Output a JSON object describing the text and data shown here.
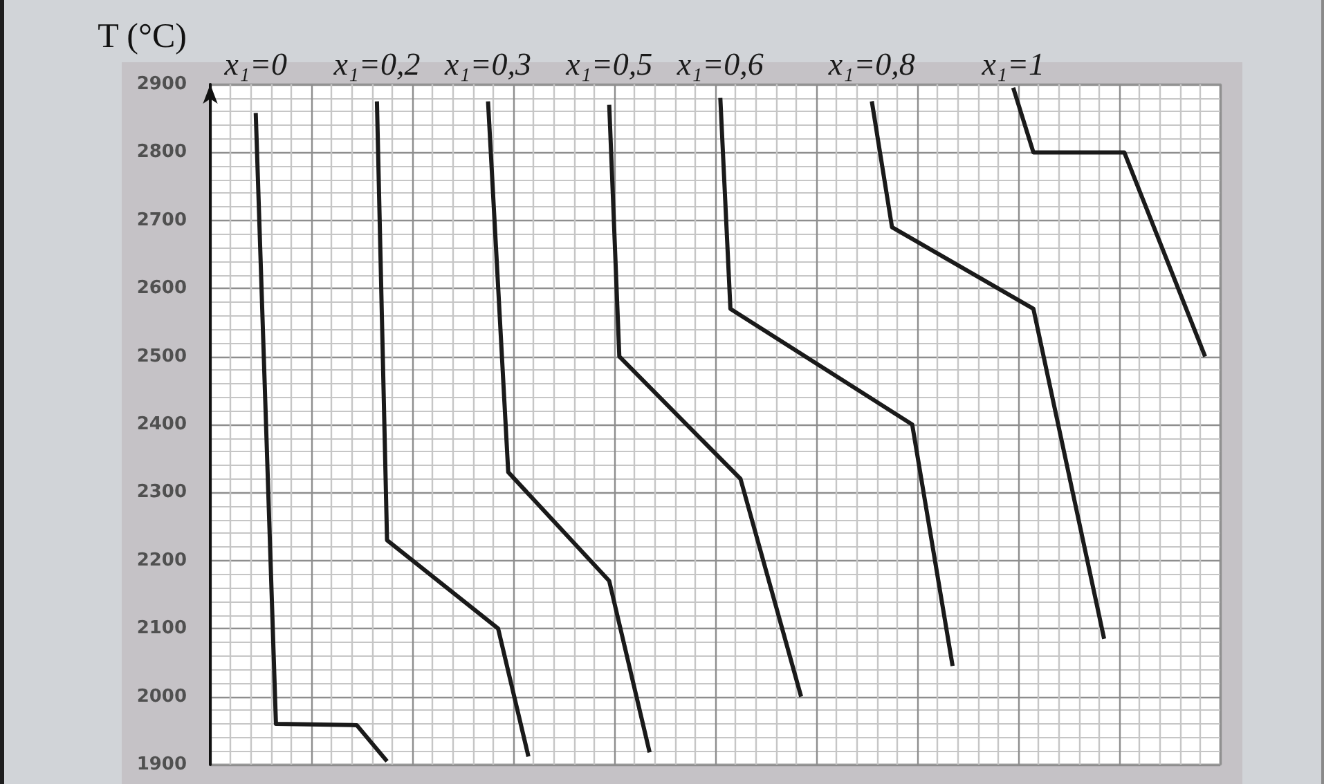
{
  "chart_data": {
    "type": "line",
    "ylabel": "T (°C)",
    "categories": [
      null,
      null,
      null,
      null,
      null,
      null,
      null,
      null,
      null,
      null,
      null,
      null,
      null,
      null,
      null,
      null,
      null,
      null,
      null,
      null,
      null,
      null,
      null,
      null,
      null,
      null,
      null,
      null,
      null,
      null,
      null,
      null,
      null,
      null,
      null,
      null,
      null,
      null,
      null,
      null,
      null,
      null,
      null,
      null,
      null,
      null,
      null,
      null,
      null,
      null,
      null,
      null,
      null,
      null,
      null,
      null,
      null,
      null,
      null,
      null,
      null,
      null,
      null,
      null,
      null,
      null,
      null,
      null,
      null,
      null,
      null,
      null,
      null,
      null,
      null,
      null,
      null,
      null,
      null,
      null,
      null,
      null,
      null,
      null,
      null,
      null,
      null,
      null,
      null,
      null,
      null,
      null,
      null,
      null,
      null,
      null,
      null,
      null,
      null,
      null
    ],
    "series": [
      {
        "name": "x₁=0",
        "color": "#1a1a1a",
        "values": [
          null,
          null,
          null,
          null,
          2858,
          null,
          1960,
          null,
          null,
          null,
          null,
          null,
          null,
          null,
          1958,
          null,
          null,
          1905,
          null,
          null,
          null,
          null,
          null,
          null,
          null,
          null,
          null,
          null,
          null,
          null,
          null,
          null,
          null,
          null,
          null,
          null,
          null,
          null,
          null,
          null,
          null,
          null,
          null,
          null,
          null,
          null,
          null,
          null,
          null,
          null,
          null,
          null,
          null,
          null,
          null,
          null,
          null,
          null,
          null,
          null,
          null,
          null,
          null,
          null,
          null,
          null,
          null,
          null,
          null,
          null,
          null,
          null,
          null,
          null,
          null,
          null,
          null,
          null,
          null,
          null,
          null,
          null,
          null,
          null,
          null,
          null,
          null,
          null,
          null,
          null,
          null,
          null,
          null,
          null,
          null,
          null,
          null,
          null,
          null,
          null
        ]
      },
      {
        "name": "x₁=0,2",
        "color": "#1a1a1a",
        "values": [
          null,
          null,
          null,
          null,
          null,
          null,
          null,
          null,
          null,
          null,
          null,
          null,
          null,
          null,
          null,
          null,
          2875,
          2230,
          null,
          null,
          null,
          null,
          null,
          null,
          null,
          null,
          null,
          null,
          2100,
          null,
          null,
          1912,
          null,
          null,
          null,
          null,
          null,
          null,
          null,
          null,
          null,
          null,
          null,
          null,
          null,
          null,
          null,
          null,
          null,
          null,
          null,
          null,
          null,
          null,
          null,
          null,
          null,
          null,
          null,
          null,
          null,
          null,
          null,
          null,
          null,
          null,
          null,
          null,
          null,
          null,
          null,
          null,
          null,
          null,
          null,
          null,
          null,
          null,
          null,
          null,
          null,
          null,
          null,
          null,
          null,
          null,
          null,
          null,
          null,
          null,
          null,
          null,
          null,
          null,
          null,
          null,
          null,
          null,
          null,
          null
        ]
      },
      {
        "name": "x₁=0,3",
        "color": "#1a1a1a",
        "values": [
          null,
          null,
          null,
          null,
          null,
          null,
          null,
          null,
          null,
          null,
          null,
          null,
          null,
          null,
          null,
          null,
          null,
          null,
          null,
          null,
          null,
          null,
          null,
          null,
          null,
          null,
          null,
          2875,
          null,
          2330,
          null,
          null,
          null,
          null,
          null,
          null,
          null,
          null,
          null,
          2170,
          null,
          null,
          null,
          1918,
          null,
          null,
          null,
          null,
          null,
          null,
          null,
          null,
          null,
          null,
          null,
          null,
          null,
          null,
          null,
          null,
          null,
          null,
          null,
          null,
          null,
          null,
          null,
          null,
          null,
          null,
          null,
          null,
          null,
          null,
          null,
          null,
          null,
          null,
          null,
          null,
          null,
          null,
          null,
          null,
          null,
          null,
          null,
          null,
          null,
          null,
          null,
          null,
          null,
          null,
          null,
          null,
          null,
          null,
          null,
          null
        ]
      },
      {
        "name": "x₁=0,5",
        "color": "#1a1a1a",
        "values": [
          null,
          null,
          null,
          null,
          null,
          null,
          null,
          null,
          null,
          null,
          null,
          null,
          null,
          null,
          null,
          null,
          null,
          null,
          null,
          null,
          null,
          null,
          null,
          null,
          null,
          null,
          null,
          null,
          null,
          null,
          null,
          null,
          null,
          null,
          null,
          null,
          null,
          null,
          null,
          2870,
          2500,
          null,
          null,
          null,
          null,
          null,
          null,
          null,
          null,
          null,
          null,
          null,
          2320,
          null,
          null,
          null,
          null,
          null,
          2000,
          null,
          null,
          null,
          null,
          null,
          null,
          null,
          null,
          null,
          null,
          null,
          null,
          null,
          null,
          null,
          null,
          null,
          null,
          null,
          null,
          null,
          null,
          null,
          null,
          null,
          null,
          null,
          null,
          null,
          null,
          null,
          null,
          null,
          null,
          null,
          null,
          null,
          null,
          null,
          null,
          null
        ]
      },
      {
        "name": "x₁=0,6",
        "color": "#1a1a1a",
        "values": [
          null,
          null,
          null,
          null,
          null,
          null,
          null,
          null,
          null,
          null,
          null,
          null,
          null,
          null,
          null,
          null,
          null,
          null,
          null,
          null,
          null,
          null,
          null,
          null,
          null,
          null,
          null,
          null,
          null,
          null,
          null,
          null,
          null,
          null,
          null,
          null,
          null,
          null,
          null,
          null,
          null,
          null,
          null,
          null,
          null,
          null,
          null,
          null,
          null,
          null,
          2880,
          2570,
          null,
          null,
          null,
          null,
          null,
          null,
          null,
          null,
          null,
          null,
          null,
          null,
          null,
          null,
          null,
          null,
          null,
          2400,
          null,
          null,
          null,
          2045,
          null,
          null,
          null,
          null,
          null,
          null,
          null,
          null,
          null,
          null,
          null,
          null,
          null,
          null,
          null,
          null,
          null,
          null,
          null,
          null,
          null,
          null,
          null,
          null,
          null,
          null
        ]
      },
      {
        "name": "x₁=0,8",
        "color": "#1a1a1a",
        "values": [
          null,
          null,
          null,
          null,
          null,
          null,
          null,
          null,
          null,
          null,
          null,
          null,
          null,
          null,
          null,
          null,
          null,
          null,
          null,
          null,
          null,
          null,
          null,
          null,
          null,
          null,
          null,
          null,
          null,
          null,
          null,
          null,
          null,
          null,
          null,
          null,
          null,
          null,
          null,
          null,
          null,
          null,
          null,
          null,
          null,
          null,
          null,
          null,
          null,
          null,
          null,
          null,
          null,
          null,
          null,
          null,
          null,
          null,
          null,
          null,
          null,
          null,
          null,
          null,
          null,
          2875,
          null,
          2690,
          null,
          null,
          null,
          null,
          null,
          null,
          null,
          null,
          null,
          null,
          null,
          null,
          null,
          2570,
          null,
          null,
          null,
          null,
          null,
          null,
          2085,
          null,
          null,
          null,
          null,
          null,
          null,
          null,
          null,
          null,
          null,
          null
        ]
      },
      {
        "name": "x₁=1",
        "color": "#1a1a1a",
        "values": [
          null,
          null,
          null,
          null,
          null,
          null,
          null,
          null,
          null,
          null,
          null,
          null,
          null,
          null,
          null,
          null,
          null,
          null,
          null,
          null,
          null,
          null,
          null,
          null,
          null,
          null,
          null,
          null,
          null,
          null,
          null,
          null,
          null,
          null,
          null,
          null,
          null,
          null,
          null,
          null,
          null,
          null,
          null,
          null,
          null,
          null,
          null,
          null,
          null,
          null,
          null,
          null,
          null,
          null,
          null,
          null,
          null,
          null,
          null,
          null,
          null,
          null,
          null,
          null,
          null,
          null,
          null,
          null,
          null,
          null,
          null,
          null,
          null,
          null,
          null,
          null,
          null,
          null,
          null,
          2895,
          null,
          2800,
          null,
          null,
          null,
          null,
          null,
          null,
          null,
          null,
          2800,
          null,
          null,
          null,
          null,
          null,
          null,
          null,
          2500,
          null
        ]
      }
    ],
    "ylim": [
      1900,
      2900
    ],
    "yticks": [
      1900,
      2000,
      2100,
      2200,
      2300,
      2400,
      2500,
      2600,
      2700,
      2800,
      2900
    ],
    "grid": true,
    "tick_labels": "y",
    "marker": "none",
    "line_style": "solid"
  }
}
